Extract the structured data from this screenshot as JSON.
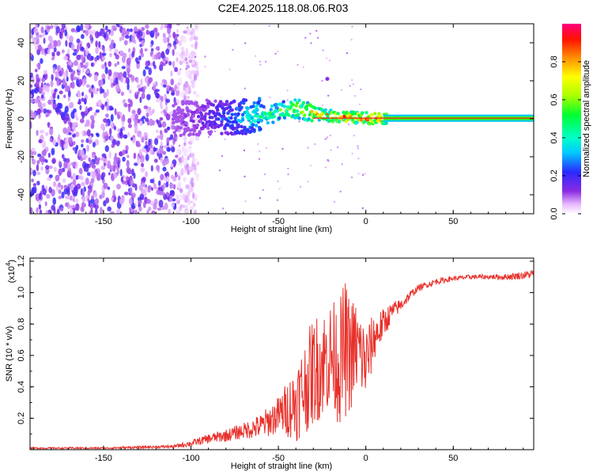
{
  "title": "C2E4.2025.118.08.06.R03",
  "chart_data": [
    {
      "type": "heatmap",
      "xlabel": "Height of straight line (km)",
      "ylabel": "Frequency (Hz)",
      "xlim": [
        -192,
        96
      ],
      "ylim": [
        -50,
        50
      ],
      "x_ticks": [
        -150,
        -100,
        -50,
        0,
        50
      ],
      "y_ticks": [
        -40,
        -20,
        0,
        20,
        40
      ],
      "colorbar": {
        "label": "Normalized spectral amplitude",
        "range": [
          0,
          1
        ],
        "ticks": [
          0.0,
          0.2,
          0.4,
          0.6,
          0.8
        ]
      },
      "ridge": {
        "x": [
          -110,
          -100,
          -90,
          -80,
          -70,
          -60,
          -50,
          -45,
          -40,
          -35,
          -30,
          -25,
          -20,
          -15,
          -10,
          -5,
          0,
          5,
          10,
          20,
          40,
          60,
          80,
          95
        ],
        "frequency": [
          0,
          0,
          1,
          0,
          1,
          2,
          3.5,
          4.5,
          5,
          4.5,
          3,
          2,
          1.5,
          1,
          0.8,
          0.5,
          0.3,
          0.3,
          0.3,
          0.3,
          0.3,
          0.3,
          0.3,
          0.3
        ],
        "amplitude": [
          0.1,
          0.15,
          0.2,
          0.3,
          0.4,
          0.5,
          0.6,
          0.7,
          0.75,
          0.8,
          0.85,
          0.9,
          0.95,
          0.95,
          1,
          1,
          1,
          1,
          1,
          1,
          1,
          1,
          1,
          1
        ]
      },
      "noise_region": {
        "x_from": -192,
        "x_to": -108,
        "amplitude": "low"
      },
      "grid": false
    },
    {
      "type": "line",
      "xlabel": "Height of straight line (km)",
      "ylabel": "SNR (10 * v/v)",
      "y_multiplier": "(x10",
      "y_multiplier_exp": "4",
      "xlim": [
        -192,
        96
      ],
      "ylim": [
        0,
        1.22
      ],
      "x_ticks": [
        -150,
        -100,
        -50,
        0,
        50
      ],
      "y_ticks": [
        0.2,
        0.4,
        0.6,
        0.8,
        1.0,
        1.2
      ],
      "color": "#e8302a",
      "series": [
        {
          "x": [
            -192,
            -150,
            -110,
            -100,
            -90,
            -80,
            -70,
            -60,
            -50,
            -45,
            -40,
            -35,
            -30,
            -25,
            -20,
            -15,
            -12,
            -10,
            -5,
            0,
            5,
            10,
            15,
            20,
            25,
            30,
            40,
            50,
            60,
            70,
            80,
            90,
            96
          ],
          "y": [
            0.01,
            0.01,
            0.02,
            0.04,
            0.07,
            0.09,
            0.12,
            0.15,
            0.22,
            0.26,
            0.3,
            0.4,
            0.5,
            0.55,
            0.6,
            0.55,
            0.65,
            0.6,
            0.65,
            0.55,
            0.72,
            0.8,
            0.88,
            0.92,
            0.98,
            1.03,
            1.07,
            1.09,
            1.1,
            1.1,
            1.1,
            1.11,
            1.12
          ],
          "noise_amplitude": [
            0.005,
            0.006,
            0.01,
            0.02,
            0.03,
            0.04,
            0.05,
            0.08,
            0.12,
            0.18,
            0.25,
            0.3,
            0.35,
            0.35,
            0.35,
            0.4,
            0.45,
            0.4,
            0.3,
            0.25,
            0.15,
            0.1,
            0.06,
            0.04,
            0.03,
            0.02,
            0.02,
            0.015,
            0.015,
            0.015,
            0.02,
            0.025,
            0.03
          ]
        }
      ],
      "grid": false
    }
  ]
}
